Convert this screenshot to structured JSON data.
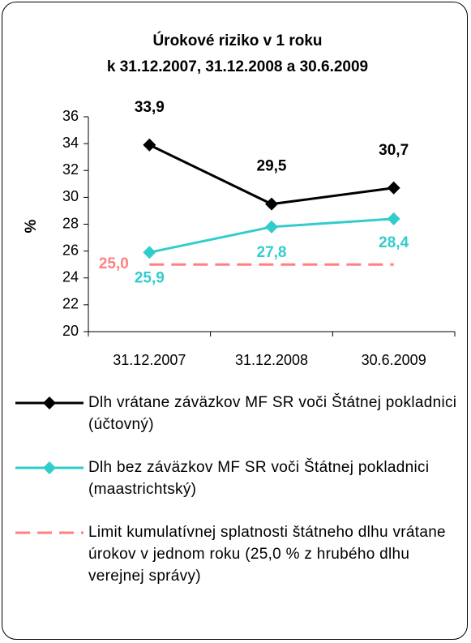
{
  "chart_data": {
    "type": "line",
    "title": "Úrokové riziko v 1 roku",
    "subtitle": "k 31.12.2007, 31.12.2008 a 30.6.2009",
    "y_label": "%",
    "categories": [
      "31.12.2007",
      "31.12.2008",
      "30.6.2009"
    ],
    "ylim": [
      20,
      36
    ],
    "yticks": [
      20,
      22,
      24,
      26,
      28,
      30,
      32,
      34,
      36
    ],
    "series": [
      {
        "name": "Dlh vrátane záväzkov MF SR voči Štátnej pokladnici (účtovný)",
        "color": "#000000",
        "marker": "diamond",
        "dash": false,
        "values": [
          33.9,
          29.5,
          30.7
        ],
        "value_labels": [
          "33,9",
          "29,5",
          "30,7"
        ]
      },
      {
        "name": "Dlh bez záväzkov MF SR voči Štátnej pokladnici (maastrichtský)",
        "color": "#33cccc",
        "marker": "diamond",
        "dash": false,
        "values": [
          25.9,
          27.8,
          28.4
        ],
        "value_labels": [
          "25,9",
          "27,8",
          "28,4"
        ]
      },
      {
        "name": "Limit kumulatívnej splatnosti štátneho dlhu vrátane úrokov v jednom roku (25,0 % z hrubého dlhu verejnej správy)",
        "color": "#ff8080",
        "marker": null,
        "dash": true,
        "values": [
          25.0,
          25.0,
          25.0
        ],
        "value_labels": [
          "25,0",
          null,
          null
        ]
      }
    ]
  }
}
